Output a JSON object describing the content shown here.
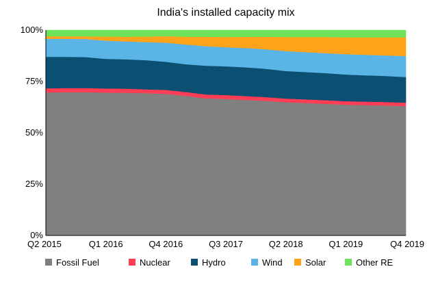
{
  "chart_data": {
    "type": "area",
    "stacked": true,
    "percent": true,
    "title": "India's installed capacity mix",
    "xlabel": "",
    "ylabel": "",
    "ylim": [
      0,
      100
    ],
    "y_ticks": [
      "0%",
      "25%",
      "50%",
      "75%",
      "100%"
    ],
    "y_tick_values": [
      0,
      25,
      50,
      75,
      100
    ],
    "x_tick_labels": [
      "Q2 2015",
      "Q1 2016",
      "Q4 2016",
      "Q3 2017",
      "Q2 2018",
      "Q1 2019",
      "Q4 2019"
    ],
    "categories": [
      "Q2 2015",
      "Q3 2015",
      "Q4 2015",
      "Q1 2016",
      "Q2 2016",
      "Q3 2016",
      "Q4 2016",
      "Q1 2017",
      "Q2 2017",
      "Q3 2017",
      "Q4 2017",
      "Q1 2018",
      "Q2 2018",
      "Q3 2018",
      "Q4 2018",
      "Q1 2019",
      "Q2 2019",
      "Q3 2019",
      "Q4 2019"
    ],
    "series": [
      {
        "name": "Fossil Fuel",
        "color": "#808080",
        "values": [
          69.7,
          69.8,
          69.8,
          69.6,
          69.5,
          69.3,
          69.0,
          68.0,
          66.8,
          66.5,
          66.0,
          65.6,
          64.9,
          64.5,
          64.1,
          63.7,
          63.5,
          63.3,
          63.0
        ]
      },
      {
        "name": "Nuclear",
        "color": "#ff3d55",
        "values": [
          2.0,
          2.0,
          2.0,
          2.0,
          2.0,
          1.9,
          1.9,
          1.9,
          1.9,
          1.9,
          1.9,
          1.8,
          1.8,
          1.8,
          1.8,
          1.7,
          1.7,
          1.7,
          1.7
        ]
      },
      {
        "name": "Hydro",
        "color": "#0b4f72",
        "values": [
          15.3,
          15.2,
          15.1,
          14.4,
          14.3,
          14.2,
          13.7,
          13.5,
          14.0,
          14.0,
          14.0,
          13.8,
          13.4,
          13.3,
          13.2,
          13.0,
          12.8,
          12.7,
          12.5
        ]
      },
      {
        "name": "Wind",
        "color": "#5ab4e5",
        "values": [
          8.8,
          8.8,
          8.8,
          8.9,
          8.7,
          8.8,
          9.3,
          9.6,
          9.5,
          9.3,
          9.4,
          9.5,
          9.7,
          9.7,
          9.7,
          9.9,
          10.0,
          10.0,
          10.2
        ]
      },
      {
        "name": "Solar",
        "color": "#ffa31a",
        "values": [
          1.2,
          1.2,
          1.3,
          2.0,
          2.3,
          2.7,
          3.2,
          3.8,
          4.6,
          5.0,
          5.5,
          6.1,
          6.9,
          7.4,
          7.9,
          8.2,
          8.5,
          8.8,
          9.1
        ]
      },
      {
        "name": "Other RE",
        "color": "#6ee35a",
        "values": [
          3.0,
          3.0,
          3.0,
          3.1,
          3.2,
          3.1,
          2.9,
          3.2,
          3.2,
          3.3,
          3.2,
          3.2,
          3.3,
          3.3,
          3.3,
          3.5,
          3.5,
          3.5,
          3.5
        ]
      }
    ],
    "grid": false,
    "legend_position": "bottom"
  }
}
